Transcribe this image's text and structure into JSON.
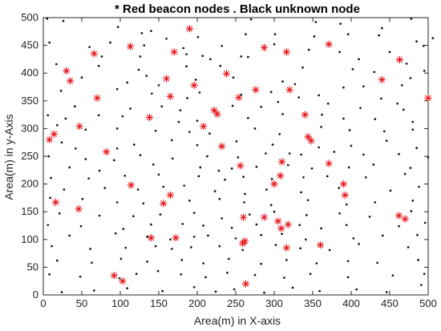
{
  "chart_data": {
    "type": "scatter",
    "title": "* Red beacon nodes . Black unknown node",
    "xlabel": "Area(m) in X-axis",
    "ylabel": "Area(m) in y-Axis",
    "xlim": [
      0,
      500
    ],
    "ylim": [
      0,
      500
    ],
    "xticks": [
      0,
      50,
      100,
      150,
      200,
      250,
      300,
      350,
      400,
      450,
      500
    ],
    "yticks": [
      0,
      50,
      100,
      150,
      200,
      250,
      300,
      350,
      400,
      450,
      500
    ],
    "grid": false,
    "colors": {
      "beacon": "#e8141a",
      "unknown": "#111111"
    },
    "series": [
      {
        "marker": "asterisk",
        "color": "#e8141a",
        "points": [
          [
            190,
            480
          ],
          [
            113,
            448
          ],
          [
            287,
            446
          ],
          [
            371,
            452
          ],
          [
            170,
            438
          ],
          [
            66,
            435
          ],
          [
            316,
            438
          ],
          [
            463,
            424
          ],
          [
            30,
            404
          ],
          [
            35,
            386
          ],
          [
            160,
            390
          ],
          [
            238,
            399
          ],
          [
            196,
            378
          ],
          [
            440,
            388
          ],
          [
            320,
            370
          ],
          [
            276,
            370
          ],
          [
            254,
            356
          ],
          [
            70,
            355
          ],
          [
            165,
            358
          ],
          [
            500,
            355
          ],
          [
            222,
            333
          ],
          [
            226,
            326
          ],
          [
            138,
            320
          ],
          [
            340,
            325
          ],
          [
            47,
            304
          ],
          [
            208,
            304
          ],
          [
            14,
            290
          ],
          [
            8,
            280
          ],
          [
            344,
            285
          ],
          [
            348,
            278
          ],
          [
            232,
            268
          ],
          [
            82,
            258
          ],
          [
            371,
            237
          ],
          [
            256,
            233
          ],
          [
            310,
            240
          ],
          [
            308,
            215
          ],
          [
            300,
            200
          ],
          [
            390,
            200
          ],
          [
            114,
            198
          ],
          [
            392,
            180
          ],
          [
            165,
            180
          ],
          [
            156,
            165
          ],
          [
            16,
            167
          ],
          [
            46,
            155
          ],
          [
            260,
            140
          ],
          [
            287,
            140
          ],
          [
            305,
            133
          ],
          [
            309,
            120
          ],
          [
            318,
            127
          ],
          [
            462,
            143
          ],
          [
            470,
            137
          ],
          [
            172,
            103
          ],
          [
            140,
            103
          ],
          [
            262,
            97
          ],
          [
            259,
            93
          ],
          [
            360,
            90
          ],
          [
            316,
            85
          ],
          [
            92,
            35
          ],
          [
            103,
            25
          ],
          [
            263,
            20
          ]
        ]
      },
      {
        "marker": "dot",
        "color": "#111111",
        "points": [
          [
            5,
            498
          ],
          [
            26,
            494
          ],
          [
            97,
            483
          ],
          [
            140,
            476
          ],
          [
            270,
            497
          ],
          [
            354,
            492
          ],
          [
            386,
            489
          ],
          [
            440,
            481
          ],
          [
            478,
            498
          ],
          [
            128,
            472
          ],
          [
            160,
            462
          ],
          [
            201,
            465
          ],
          [
            263,
            470
          ],
          [
            301,
            470
          ],
          [
            352,
            466
          ],
          [
            396,
            470
          ],
          [
            436,
            468
          ],
          [
            485,
            457
          ],
          [
            494,
            449
          ],
          [
            506,
            463
          ],
          [
            8,
            455
          ],
          [
            60,
            447
          ],
          [
            87,
            455
          ],
          [
            131,
            450
          ],
          [
            182,
            445
          ],
          [
            232,
            449
          ],
          [
            300,
            452
          ],
          [
            345,
            442
          ],
          [
            385,
            438
          ],
          [
            450,
            438
          ],
          [
            76,
            430
          ],
          [
            126,
            430
          ],
          [
            186,
            434
          ],
          [
            207,
            431
          ],
          [
            217,
            425
          ],
          [
            257,
            430
          ],
          [
            266,
            429
          ],
          [
            410,
            425
          ],
          [
            472,
            417
          ],
          [
            17,
            416
          ],
          [
            72,
            413
          ],
          [
            124,
            406
          ],
          [
            186,
            412
          ],
          [
            230,
            413
          ],
          [
            337,
            410
          ],
          [
            402,
            407
          ],
          [
            430,
            402
          ],
          [
            495,
            404
          ],
          [
            50,
            392
          ],
          [
            109,
            383
          ],
          [
            134,
            395
          ],
          [
            150,
            378
          ],
          [
            198,
            388
          ],
          [
            247,
            392
          ],
          [
            311,
            385
          ],
          [
            327,
            380
          ],
          [
            390,
            374
          ],
          [
            416,
            376
          ],
          [
            466,
            378
          ],
          [
            477,
            391
          ],
          [
            23,
            368
          ],
          [
            96,
            371
          ],
          [
            141,
            363
          ],
          [
            187,
            355
          ],
          [
            203,
            365
          ],
          [
            257,
            361
          ],
          [
            296,
            366
          ],
          [
            332,
            356
          ],
          [
            358,
            360
          ],
          [
            439,
            354
          ],
          [
            460,
            345
          ],
          [
            41,
            340
          ],
          [
            113,
            336
          ],
          [
            154,
            340
          ],
          [
            178,
            333
          ],
          [
            246,
            341
          ],
          [
            283,
            339
          ],
          [
            305,
            348
          ],
          [
            370,
            345
          ],
          [
            412,
            337
          ],
          [
            468,
            334
          ],
          [
            6,
            324
          ],
          [
            29,
            318
          ],
          [
            72,
            324
          ],
          [
            103,
            322
          ],
          [
            176,
            312
          ],
          [
            200,
            314
          ],
          [
            266,
            319
          ],
          [
            311,
            326
          ],
          [
            362,
            325
          ],
          [
            390,
            318
          ],
          [
            431,
            317
          ],
          [
            480,
            312
          ],
          [
            18,
            306
          ],
          [
            55,
            298
          ],
          [
            96,
            300
          ],
          [
            146,
            296
          ],
          [
            190,
            294
          ],
          [
            216,
            291
          ],
          [
            275,
            300
          ],
          [
            307,
            290
          ],
          [
            361,
            303
          ],
          [
            398,
            297
          ],
          [
            443,
            295
          ],
          [
            480,
            298
          ],
          [
            24,
            275
          ],
          [
            42,
            264
          ],
          [
            96,
            264
          ],
          [
            118,
            271
          ],
          [
            167,
            279
          ],
          [
            200,
            270
          ],
          [
            251,
            277
          ],
          [
            298,
            271
          ],
          [
            358,
            266
          ],
          [
            400,
            269
          ],
          [
            446,
            278
          ],
          [
            485,
            265
          ],
          [
            7,
            250
          ],
          [
            55,
            245
          ],
          [
            92,
            243
          ],
          [
            126,
            252
          ],
          [
            168,
            246
          ],
          [
            213,
            250
          ],
          [
            253,
            248
          ],
          [
            289,
            255
          ],
          [
            320,
            255
          ],
          [
            335,
            253
          ],
          [
            378,
            258
          ],
          [
            416,
            253
          ],
          [
            462,
            254
          ],
          [
            500,
            248
          ],
          [
            34,
            230
          ],
          [
            73,
            224
          ],
          [
            143,
            235
          ],
          [
            204,
            230
          ],
          [
            228,
            224
          ],
          [
            245,
            228
          ],
          [
            277,
            231
          ],
          [
            318,
            234
          ],
          [
            349,
            228
          ],
          [
            397,
            230
          ],
          [
            429,
            235
          ],
          [
            477,
            229
          ],
          [
            10,
            211
          ],
          [
            59,
            210
          ],
          [
            106,
            215
          ],
          [
            150,
            217
          ],
          [
            202,
            214
          ],
          [
            236,
            208
          ],
          [
            260,
            213
          ],
          [
            297,
            209
          ],
          [
            338,
            212
          ],
          [
            369,
            214
          ],
          [
            419,
            212
          ],
          [
            470,
            218
          ],
          [
            27,
            190
          ],
          [
            80,
            193
          ],
          [
            123,
            190
          ],
          [
            156,
            195
          ],
          [
            183,
            197
          ],
          [
            223,
            187
          ],
          [
            262,
            182
          ],
          [
            290,
            190
          ],
          [
            335,
            185
          ],
          [
            384,
            193
          ],
          [
            451,
            188
          ],
          [
            488,
            195
          ],
          [
            9,
            175
          ],
          [
            51,
            173
          ],
          [
            96,
            167
          ],
          [
            130,
            165
          ],
          [
            190,
            170
          ],
          [
            229,
            173
          ],
          [
            261,
            167
          ],
          [
            296,
            162
          ],
          [
            344,
            171
          ],
          [
            394,
            163
          ],
          [
            431,
            167
          ],
          [
            480,
            170
          ],
          [
            21,
            147
          ],
          [
            73,
            143
          ],
          [
            117,
            142
          ],
          [
            152,
            145
          ],
          [
            196,
            148
          ],
          [
            232,
            138
          ],
          [
            268,
            145
          ],
          [
            300,
            150
          ],
          [
            342,
            144
          ],
          [
            385,
            147
          ],
          [
            424,
            141
          ],
          [
            478,
            151
          ],
          [
            6,
            126
          ],
          [
            49,
            124
          ],
          [
            104,
            119
          ],
          [
            140,
            127
          ],
          [
            181,
            128
          ],
          [
            208,
            125
          ],
          [
            245,
            121
          ],
          [
            277,
            127
          ],
          [
            333,
            126
          ],
          [
            361,
            120
          ],
          [
            394,
            126
          ],
          [
            462,
            124
          ],
          [
            496,
            130
          ],
          [
            34,
            107
          ],
          [
            94,
            111
          ],
          [
            135,
            105
          ],
          [
            165,
            100
          ],
          [
            196,
            105
          ],
          [
            214,
            107
          ],
          [
            250,
            102
          ],
          [
            283,
            108
          ],
          [
            310,
            110
          ],
          [
            341,
            100
          ],
          [
            403,
            102
          ],
          [
            441,
            107
          ],
          [
            486,
            108
          ],
          [
            11,
            88
          ],
          [
            61,
            83
          ],
          [
            107,
            85
          ],
          [
            146,
            88
          ],
          [
            167,
            83
          ],
          [
            192,
            86
          ],
          [
            229,
            88
          ],
          [
            259,
            81
          ],
          [
            302,
            90
          ],
          [
            334,
            84
          ],
          [
            372,
            81
          ],
          [
            410,
            92
          ],
          [
            474,
            86
          ],
          [
            18,
            62
          ],
          [
            63,
            58
          ],
          [
            101,
            65
          ],
          [
            135,
            60
          ],
          [
            180,
            63
          ],
          [
            208,
            57
          ],
          [
            241,
            65
          ],
          [
            283,
            56
          ],
          [
            316,
            63
          ],
          [
            355,
            57
          ],
          [
            396,
            61
          ],
          [
            434,
            58
          ],
          [
            487,
            63
          ],
          [
            8,
            37
          ],
          [
            48,
            33
          ],
          [
            99,
            30
          ],
          [
            121,
            38
          ],
          [
            149,
            43
          ],
          [
            179,
            37
          ],
          [
            211,
            32
          ],
          [
            239,
            40
          ],
          [
            275,
            36
          ],
          [
            313,
            31
          ],
          [
            347,
            38
          ],
          [
            396,
            32
          ],
          [
            454,
            35
          ],
          [
            495,
            38
          ],
          [
            24,
            5
          ],
          [
            66,
            8
          ],
          [
            109,
            12
          ],
          [
            155,
            7
          ],
          [
            196,
            14
          ],
          [
            224,
            6
          ],
          [
            248,
            10
          ],
          [
            287,
            4
          ],
          [
            324,
            13
          ],
          [
            359,
            7
          ],
          [
            407,
            10
          ],
          [
            446,
            5
          ],
          [
            491,
            18
          ]
        ]
      }
    ]
  }
}
